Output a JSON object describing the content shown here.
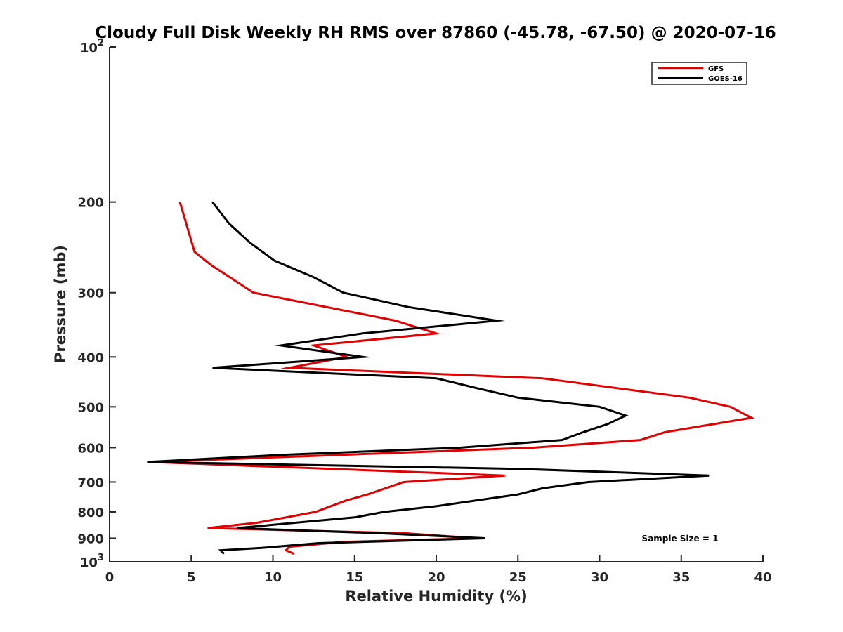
{
  "chart_data": {
    "type": "line",
    "title": "Cloudy Full Disk Weekly RH RMS over 87860 (-45.78, -67.50) @ 2020-07-16",
    "xlabel": "Relative Humidity (%)",
    "ylabel": "Pressure (mb)",
    "xlim": [
      0,
      40
    ],
    "ylim": [
      100,
      1000
    ],
    "yscale": "log",
    "y_reversed": true,
    "xticks": [
      0,
      5,
      10,
      15,
      20,
      25,
      30,
      35,
      40
    ],
    "yticks": [
      100,
      200,
      300,
      400,
      500,
      600,
      700,
      800,
      900,
      1000
    ],
    "ytick_labels": {
      "100": {
        "base": "10",
        "exp": "2"
      },
      "200": "200",
      "300": "300",
      "400": "400",
      "500": "500",
      "600": "600",
      "700": "700",
      "800": "800",
      "900": "900",
      "1000": {
        "base": "10",
        "exp": "3"
      }
    },
    "grid": false,
    "legend_position": "top-right",
    "annotation": "Sample Size = 1",
    "series": [
      {
        "name": "GFS",
        "color": "#e00000",
        "points": [
          [
            4.3,
            200
          ],
          [
            5.2,
            250
          ],
          [
            6.2,
            265
          ],
          [
            8.8,
            300
          ],
          [
            17.5,
            340
          ],
          [
            20.0,
            360
          ],
          [
            12.5,
            380
          ],
          [
            14.5,
            400
          ],
          [
            11.0,
            420
          ],
          [
            26.5,
            440
          ],
          [
            35.5,
            480
          ],
          [
            38.0,
            500
          ],
          [
            39.3,
            525
          ],
          [
            34.0,
            560
          ],
          [
            32.5,
            580
          ],
          [
            26.0,
            600
          ],
          [
            2.5,
            640
          ],
          [
            24.2,
            680
          ],
          [
            18.0,
            700
          ],
          [
            15.8,
            740
          ],
          [
            14.5,
            760
          ],
          [
            12.6,
            800
          ],
          [
            9.0,
            840
          ],
          [
            6.0,
            860
          ],
          [
            18.0,
            880
          ],
          [
            22.5,
            900
          ],
          [
            14.3,
            915
          ],
          [
            11.0,
            935
          ],
          [
            10.8,
            950
          ],
          [
            11.3,
            965
          ]
        ]
      },
      {
        "name": "GOES-16",
        "color": "#000000",
        "points": [
          [
            6.3,
            200
          ],
          [
            7.3,
            220
          ],
          [
            8.6,
            240
          ],
          [
            10.1,
            260
          ],
          [
            12.5,
            280
          ],
          [
            14.3,
            300
          ],
          [
            18.3,
            320
          ],
          [
            23.7,
            340
          ],
          [
            15.5,
            360
          ],
          [
            10.5,
            380
          ],
          [
            15.5,
            400
          ],
          [
            6.3,
            420
          ],
          [
            20.0,
            440
          ],
          [
            22.5,
            460
          ],
          [
            25.0,
            480
          ],
          [
            30.0,
            500
          ],
          [
            31.6,
            520
          ],
          [
            30.5,
            540
          ],
          [
            29.0,
            560
          ],
          [
            27.7,
            580
          ],
          [
            21.5,
            600
          ],
          [
            10.5,
            620
          ],
          [
            2.3,
            640
          ],
          [
            25.0,
            660
          ],
          [
            36.7,
            680
          ],
          [
            29.3,
            700
          ],
          [
            26.5,
            720
          ],
          [
            25.0,
            740
          ],
          [
            20.0,
            780
          ],
          [
            16.8,
            800
          ],
          [
            15.0,
            820
          ],
          [
            7.8,
            860
          ],
          [
            16.5,
            880
          ],
          [
            23.0,
            900
          ],
          [
            12.8,
            920
          ],
          [
            9.3,
            940
          ],
          [
            6.8,
            950
          ],
          [
            7.0,
            965
          ]
        ]
      }
    ]
  }
}
